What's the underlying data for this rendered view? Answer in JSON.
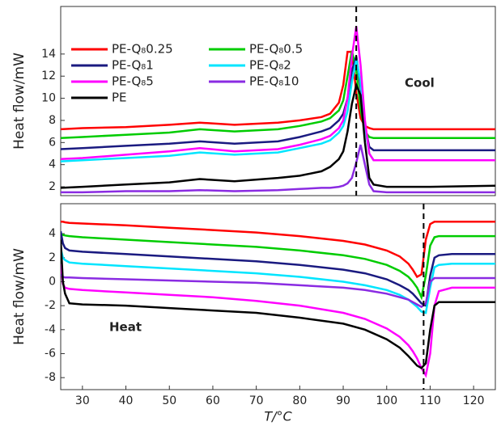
{
  "chart_data": [
    {
      "type": "line",
      "ylabel": "Heat flow/mW",
      "annotation": "Cool",
      "legend": "upper left",
      "xlim": [
        25,
        125
      ],
      "ylim": [
        1.2,
        18.3
      ],
      "yticks": [
        2,
        4,
        6,
        8,
        10,
        12,
        14
      ],
      "vlines": [
        93
      ],
      "x": [
        25,
        30,
        40,
        50,
        57,
        65,
        75,
        80,
        85,
        87,
        89,
        90,
        91,
        92,
        93,
        94,
        95,
        96,
        97,
        100,
        110,
        125
      ],
      "series": [
        {
          "name": "PE-Q₈0.25",
          "color": "#ff0000",
          "values": [
            7.2,
            7.3,
            7.4,
            7.6,
            7.8,
            7.6,
            7.8,
            8.0,
            8.3,
            8.6,
            9.6,
            11.2,
            14.2,
            14.2,
            10.5,
            8.2,
            7.5,
            7.3,
            7.2,
            7.2,
            7.2,
            7.2
          ]
        },
        {
          "name": "PE-Q₈0.5",
          "color": "#00cc00",
          "values": [
            6.4,
            6.5,
            6.7,
            6.9,
            7.2,
            7.0,
            7.2,
            7.5,
            7.9,
            8.2,
            8.9,
            9.8,
            12.0,
            14.3,
            12.5,
            9.0,
            7.0,
            6.5,
            6.4,
            6.4,
            6.4,
            6.4
          ]
        },
        {
          "name": "PE-Q₈1",
          "color": "#1a1a80",
          "values": [
            5.4,
            5.5,
            5.7,
            5.9,
            6.1,
            5.9,
            6.1,
            6.5,
            7.0,
            7.3,
            8.0,
            8.6,
            10.0,
            12.5,
            13.8,
            11.0,
            7.5,
            5.6,
            5.3,
            5.3,
            5.3,
            5.3
          ]
        },
        {
          "name": "PE-Q₈2",
          "color": "#00e5ff",
          "values": [
            4.3,
            4.4,
            4.6,
            4.8,
            5.1,
            4.9,
            5.1,
            5.5,
            5.9,
            6.2,
            6.9,
            7.5,
            8.8,
            11.5,
            13.5,
            11.5,
            7.5,
            5.0,
            4.4,
            4.4,
            4.4,
            4.4
          ]
        },
        {
          "name": "PE-Q₈5",
          "color": "#ff00ff",
          "values": [
            4.5,
            4.6,
            4.9,
            5.2,
            5.5,
            5.2,
            5.4,
            5.8,
            6.3,
            6.6,
            7.3,
            8.0,
            10.0,
            13.8,
            16.5,
            13.0,
            8.0,
            5.0,
            4.4,
            4.4,
            4.4,
            4.4
          ]
        },
        {
          "name": "PE-Q₈10",
          "color": "#8a2be2",
          "values": [
            1.5,
            1.5,
            1.6,
            1.6,
            1.7,
            1.6,
            1.7,
            1.8,
            1.9,
            1.9,
            2.0,
            2.1,
            2.3,
            2.8,
            4.2,
            5.8,
            4.0,
            2.2,
            1.6,
            1.5,
            1.5,
            1.5
          ]
        },
        {
          "name": "PE",
          "color": "#000000",
          "values": [
            1.9,
            2.0,
            2.2,
            2.4,
            2.7,
            2.5,
            2.8,
            3.0,
            3.4,
            3.8,
            4.5,
            5.2,
            7.0,
            9.5,
            11.2,
            10.3,
            6.0,
            2.8,
            2.2,
            2.0,
            2.0,
            2.1
          ]
        }
      ]
    },
    {
      "type": "line",
      "ylabel": "Heat flow/mW",
      "xlabel": "T/°C",
      "annotation": "Heat",
      "xlim": [
        25,
        125
      ],
      "ylim": [
        -9,
        6.5
      ],
      "yticks": [
        -8,
        -6,
        -4,
        -2,
        0,
        2,
        4
      ],
      "xticks": [
        30,
        40,
        50,
        60,
        70,
        80,
        90,
        100,
        110,
        120
      ],
      "vlines": [
        108.5
      ],
      "x": [
        25,
        25.5,
        26,
        27,
        30,
        40,
        50,
        60,
        70,
        80,
        90,
        95,
        100,
        103,
        105,
        106,
        107,
        108,
        109,
        110,
        111,
        112,
        115,
        125
      ],
      "series": [
        {
          "color": "#ff0000",
          "values": [
            5.0,
            5.0,
            4.95,
            4.9,
            4.85,
            4.7,
            4.5,
            4.3,
            4.1,
            3.8,
            3.4,
            3.1,
            2.6,
            2.1,
            1.5,
            1.0,
            0.4,
            0.6,
            3.5,
            4.8,
            5.0,
            5.0,
            5.0,
            5.0
          ]
        },
        {
          "color": "#00cc00",
          "values": [
            4.0,
            3.9,
            3.85,
            3.8,
            3.7,
            3.5,
            3.3,
            3.1,
            2.9,
            2.6,
            2.2,
            1.9,
            1.4,
            0.9,
            0.4,
            0.0,
            -0.5,
            -1.3,
            0.5,
            3.0,
            3.7,
            3.8,
            3.8,
            3.8
          ]
        },
        {
          "color": "#1a1a80",
          "values": [
            4.2,
            3.2,
            2.8,
            2.6,
            2.5,
            2.3,
            2.1,
            1.9,
            1.7,
            1.4,
            1.0,
            0.7,
            0.2,
            -0.3,
            -0.7,
            -1.0,
            -1.4,
            -1.8,
            -2.0,
            0.5,
            2.0,
            2.2,
            2.3,
            2.3
          ]
        },
        {
          "color": "#00e5ff",
          "values": [
            2.8,
            2.0,
            1.8,
            1.6,
            1.5,
            1.3,
            1.1,
            0.9,
            0.7,
            0.4,
            0.0,
            -0.3,
            -0.7,
            -1.1,
            -1.5,
            -1.8,
            -2.1,
            -2.5,
            -2.6,
            -0.5,
            1.2,
            1.4,
            1.5,
            1.5
          ]
        },
        {
          "color": "#ff00ff",
          "values": [
            1.5,
            -0.2,
            -0.5,
            -0.6,
            -0.7,
            -0.9,
            -1.1,
            -1.3,
            -1.6,
            -2.0,
            -2.6,
            -3.1,
            -3.9,
            -4.6,
            -5.3,
            -5.8,
            -6.4,
            -7.2,
            -7.8,
            -6.0,
            -2.0,
            -0.8,
            -0.5,
            -0.5
          ]
        },
        {
          "color": "#8a2be2",
          "values": [
            0.6,
            0.4,
            0.35,
            0.35,
            0.3,
            0.2,
            0.1,
            0.0,
            -0.1,
            -0.3,
            -0.5,
            -0.7,
            -1.0,
            -1.3,
            -1.5,
            -1.7,
            -1.9,
            -2.1,
            -1.8,
            0.0,
            0.3,
            0.3,
            0.3,
            0.3
          ]
        },
        {
          "color": "#000000",
          "values": [
            3.5,
            0.0,
            -1.0,
            -1.8,
            -1.9,
            -2.0,
            -2.2,
            -2.4,
            -2.6,
            -3.0,
            -3.5,
            -4.0,
            -4.8,
            -5.5,
            -6.2,
            -6.6,
            -7.0,
            -7.2,
            -6.8,
            -4.0,
            -2.0,
            -1.7,
            -1.7,
            -1.7
          ]
        }
      ]
    }
  ]
}
